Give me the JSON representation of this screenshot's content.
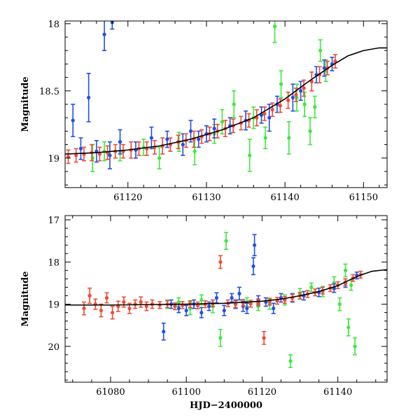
{
  "figure": {
    "xlabel": "HJD−2400000"
  },
  "colors": {
    "blue": "#1f4fe8",
    "green": "#3de83d",
    "red": "#f04a33",
    "model": "#000000"
  },
  "chart_data": [
    {
      "type": "scatter",
      "panel": "top",
      "ylabel": "Magnitude",
      "xlim": [
        61112,
        61153
      ],
      "ylim": [
        19.22,
        17.98
      ],
      "xticks": [
        61120,
        61130,
        61140,
        61150
      ],
      "xtick_labels": [
        "61120",
        "61130",
        "61140",
        "61150"
      ],
      "yticks": [
        18,
        18.5,
        19
      ],
      "ytick_labels": [
        "18",
        "18.5",
        "19"
      ],
      "model_curve": {
        "x": [
          61112,
          61116,
          61120,
          61124,
          61128,
          61132,
          61136,
          61140,
          61143,
          61146,
          61148,
          61150,
          61152,
          61153
        ],
        "y": [
          18.97,
          18.96,
          18.94,
          18.91,
          18.86,
          18.79,
          18.7,
          18.56,
          18.43,
          18.31,
          18.24,
          18.2,
          18.18,
          18.18
        ]
      },
      "series": [
        {
          "name": "red",
          "color": "#f04a33",
          "x": [
            61112.4,
            61113.4,
            61114.4,
            61115.4,
            61116.4,
            61117.4,
            61118.4,
            61119.4,
            61120.4,
            61121.4,
            61122.4,
            61123.4,
            61124.4,
            61125.4,
            61126.4,
            61127.4,
            61128.4,
            61129.4,
            61130.4,
            61131.4,
            61132.4,
            61133.4,
            61134.4,
            61135.4,
            61136.4,
            61137.4,
            61138.4,
            61139.4,
            61140.4,
            61141.4,
            61142.4,
            61143.4,
            61144.4,
            61145.4,
            61146.4
          ],
          "y": [
            18.99,
            18.98,
            18.97,
            18.96,
            18.97,
            18.96,
            18.95,
            18.95,
            18.94,
            18.93,
            18.93,
            18.92,
            18.91,
            18.9,
            18.88,
            18.87,
            18.86,
            18.84,
            18.82,
            18.8,
            18.78,
            18.76,
            18.74,
            18.72,
            18.7,
            18.67,
            18.64,
            18.61,
            18.57,
            18.53,
            18.48,
            18.43,
            18.38,
            18.33,
            18.28
          ],
          "err": [
            0.05,
            0.05,
            0.05,
            0.06,
            0.05,
            0.05,
            0.05,
            0.05,
            0.06,
            0.05,
            0.05,
            0.05,
            0.06,
            0.05,
            0.05,
            0.05,
            0.06,
            0.05,
            0.05,
            0.05,
            0.06,
            0.05,
            0.05,
            0.05,
            0.06,
            0.05,
            0.05,
            0.05,
            0.06,
            0.05,
            0.06,
            0.07,
            0.06,
            0.05,
            0.05
          ]
        },
        {
          "name": "blue",
          "color": "#1f4fe8",
          "x": [
            61113.0,
            61114.0,
            61115.0,
            61116.0,
            61117.0,
            61117.7,
            61118.0,
            61119.0,
            61121.0,
            61123.0,
            61125.0,
            61127.0,
            61128.0,
            61129.0,
            61130.0,
            61131.0,
            61133.0,
            61135.0,
            61137.0,
            61138.0,
            61139.0,
            61141.0,
            61142.0,
            61144.0,
            61145.0,
            61146.0
          ],
          "y": [
            18.72,
            18.93,
            18.55,
            18.95,
            18.08,
            18.98,
            17.99,
            18.88,
            18.94,
            18.85,
            18.86,
            18.9,
            18.8,
            18.86,
            18.82,
            18.78,
            18.76,
            18.72,
            18.68,
            18.7,
            18.6,
            18.55,
            18.5,
            18.38,
            18.33,
            18.3
          ],
          "err": [
            0.12,
            0.08,
            0.18,
            0.08,
            0.12,
            0.1,
            0.05,
            0.09,
            0.06,
            0.08,
            0.06,
            0.08,
            0.08,
            0.06,
            0.06,
            0.07,
            0.06,
            0.07,
            0.06,
            0.1,
            0.06,
            0.1,
            0.07,
            0.06,
            0.06,
            0.05
          ]
        },
        {
          "name": "green",
          "color": "#3de83d",
          "x": [
            61115.5,
            61117.0,
            61119.0,
            61122.0,
            61124.0,
            61126.5,
            61128.5,
            61131.0,
            61132.0,
            61133.5,
            61135.5,
            61136.0,
            61137.5,
            61138.7,
            61139.5,
            61140.5,
            61141.5,
            61142.5,
            61143.2,
            61143.8,
            61144.5,
            61145.2
          ],
          "y": [
            19.0,
            18.95,
            18.95,
            18.92,
            19.0,
            18.88,
            18.95,
            18.82,
            18.73,
            18.6,
            18.98,
            18.7,
            18.85,
            18.02,
            18.45,
            18.85,
            18.55,
            18.6,
            18.8,
            18.62,
            18.2,
            18.35
          ],
          "err": [
            0.1,
            0.07,
            0.07,
            0.06,
            0.08,
            0.07,
            0.1,
            0.07,
            0.09,
            0.1,
            0.12,
            0.08,
            0.08,
            0.12,
            0.1,
            0.12,
            0.1,
            0.09,
            0.1,
            0.08,
            0.08,
            0.08
          ]
        }
      ]
    },
    {
      "type": "scatter",
      "panel": "bottom",
      "ylabel": "Magnitude",
      "xlabel": "HJD−2400000",
      "xlim": [
        61068,
        61153
      ],
      "ylim": [
        20.85,
        16.9
      ],
      "xticks": [
        61080,
        61100,
        61120,
        61140
      ],
      "xtick_labels": [
        "61080",
        "61100",
        "61120",
        "61140"
      ],
      "yticks": [
        17,
        18,
        19,
        20
      ],
      "ytick_labels": [
        "17",
        "18",
        "19",
        "20"
      ],
      "model_curve": {
        "x": [
          61068,
          61080,
          61090,
          61100,
          61110,
          61120,
          61125,
          61130,
          61135,
          61140,
          61143,
          61146,
          61149,
          61153
        ],
        "y": [
          19.02,
          19.02,
          19.01,
          19.0,
          18.98,
          18.93,
          18.88,
          18.8,
          18.7,
          18.56,
          18.43,
          18.31,
          18.22,
          18.18
        ]
      },
      "series": [
        {
          "name": "red",
          "color": "#f04a33",
          "x": [
            61073.0,
            61074.5,
            61076.0,
            61077.5,
            61079.0,
            61080.5,
            61082.0,
            61083.5,
            61085.0,
            61086.5,
            61088.0,
            61089.5,
            61091.0,
            61093.0,
            61095.0,
            61097.0,
            61099.0,
            61101.0,
            61103.0,
            61105.0,
            61107.0,
            61109.0,
            61111.0,
            61113.0,
            61115.0,
            61117.0,
            61119.0,
            61120.5,
            61122.0,
            61124.0,
            61126.0,
            61128.0,
            61130.0,
            61132.0,
            61134.0,
            61136.0,
            61138.0,
            61140.0,
            61142.0,
            61144.0,
            61146.0
          ],
          "x_note": "",
          "y": [
            19.1,
            18.8,
            19.0,
            19.15,
            18.85,
            19.2,
            19.05,
            18.95,
            19.1,
            19.0,
            18.95,
            19.05,
            19.0,
            19.02,
            19.0,
            19.05,
            19.02,
            19.0,
            19.03,
            19.0,
            18.98,
            18.0,
            18.98,
            19.0,
            18.97,
            18.99,
            18.96,
            19.8,
            18.94,
            18.92,
            18.9,
            18.85,
            18.8,
            18.76,
            18.72,
            18.68,
            18.62,
            18.55,
            18.48,
            18.38,
            18.3
          ],
          "err": [
            0.15,
            0.18,
            0.12,
            0.15,
            0.12,
            0.15,
            0.12,
            0.12,
            0.12,
            0.1,
            0.12,
            0.1,
            0.1,
            0.08,
            0.08,
            0.08,
            0.08,
            0.08,
            0.08,
            0.08,
            0.08,
            0.15,
            0.08,
            0.08,
            0.08,
            0.08,
            0.08,
            0.15,
            0.08,
            0.08,
            0.08,
            0.08,
            0.08,
            0.08,
            0.08,
            0.08,
            0.08,
            0.08,
            0.08,
            0.08,
            0.08
          ]
        },
        {
          "name": "blue",
          "color": "#1f4fe8",
          "x": [
            61094.0,
            61096.0,
            61098.0,
            61100.0,
            61102.0,
            61104.0,
            61106.0,
            61108.0,
            61110.0,
            61112.0,
            61113.0,
            61114.0,
            61115.0,
            61116.0,
            61117.7,
            61118.0,
            61119.0,
            61121.0,
            61123.0,
            61125.0,
            61128.0,
            61131.0,
            61135.0,
            61139.0,
            61142.0,
            61145.0
          ],
          "y": [
            19.65,
            19.0,
            19.1,
            19.15,
            19.0,
            19.2,
            19.05,
            18.85,
            19.15,
            18.85,
            19.0,
            18.75,
            19.05,
            19.1,
            18.1,
            17.6,
            18.9,
            18.95,
            19.1,
            18.85,
            18.85,
            18.8,
            18.72,
            18.62,
            18.5,
            18.32
          ],
          "err": [
            0.2,
            0.1,
            0.1,
            0.12,
            0.1,
            0.12,
            0.1,
            0.12,
            0.12,
            0.1,
            0.1,
            0.15,
            0.12,
            0.12,
            0.2,
            0.25,
            0.1,
            0.1,
            0.12,
            0.1,
            0.1,
            0.1,
            0.1,
            0.1,
            0.1,
            0.08
          ]
        },
        {
          "name": "green",
          "color": "#3de83d",
          "x": [
            61095.0,
            61098.0,
            61101.0,
            61104.0,
            61107.0,
            61109.0,
            61110.5,
            61113.0,
            61116.0,
            61119.0,
            61122.0,
            61126.0,
            61127.5,
            61130.0,
            61133.0,
            61136.0,
            61139.0,
            61140.5,
            61142.0,
            61142.8,
            61143.5,
            61144.5
          ],
          "y": [
            19.0,
            18.95,
            19.1,
            18.9,
            19.05,
            19.8,
            17.5,
            19.0,
            18.95,
            19.05,
            19.0,
            18.9,
            20.35,
            18.75,
            18.6,
            18.7,
            18.5,
            19.0,
            18.2,
            19.55,
            18.55,
            20.0
          ],
          "err": [
            0.1,
            0.1,
            0.15,
            0.12,
            0.15,
            0.2,
            0.2,
            0.1,
            0.1,
            0.1,
            0.12,
            0.12,
            0.15,
            0.12,
            0.1,
            0.12,
            0.15,
            0.15,
            0.15,
            0.2,
            0.12,
            0.2
          ]
        }
      ]
    }
  ]
}
